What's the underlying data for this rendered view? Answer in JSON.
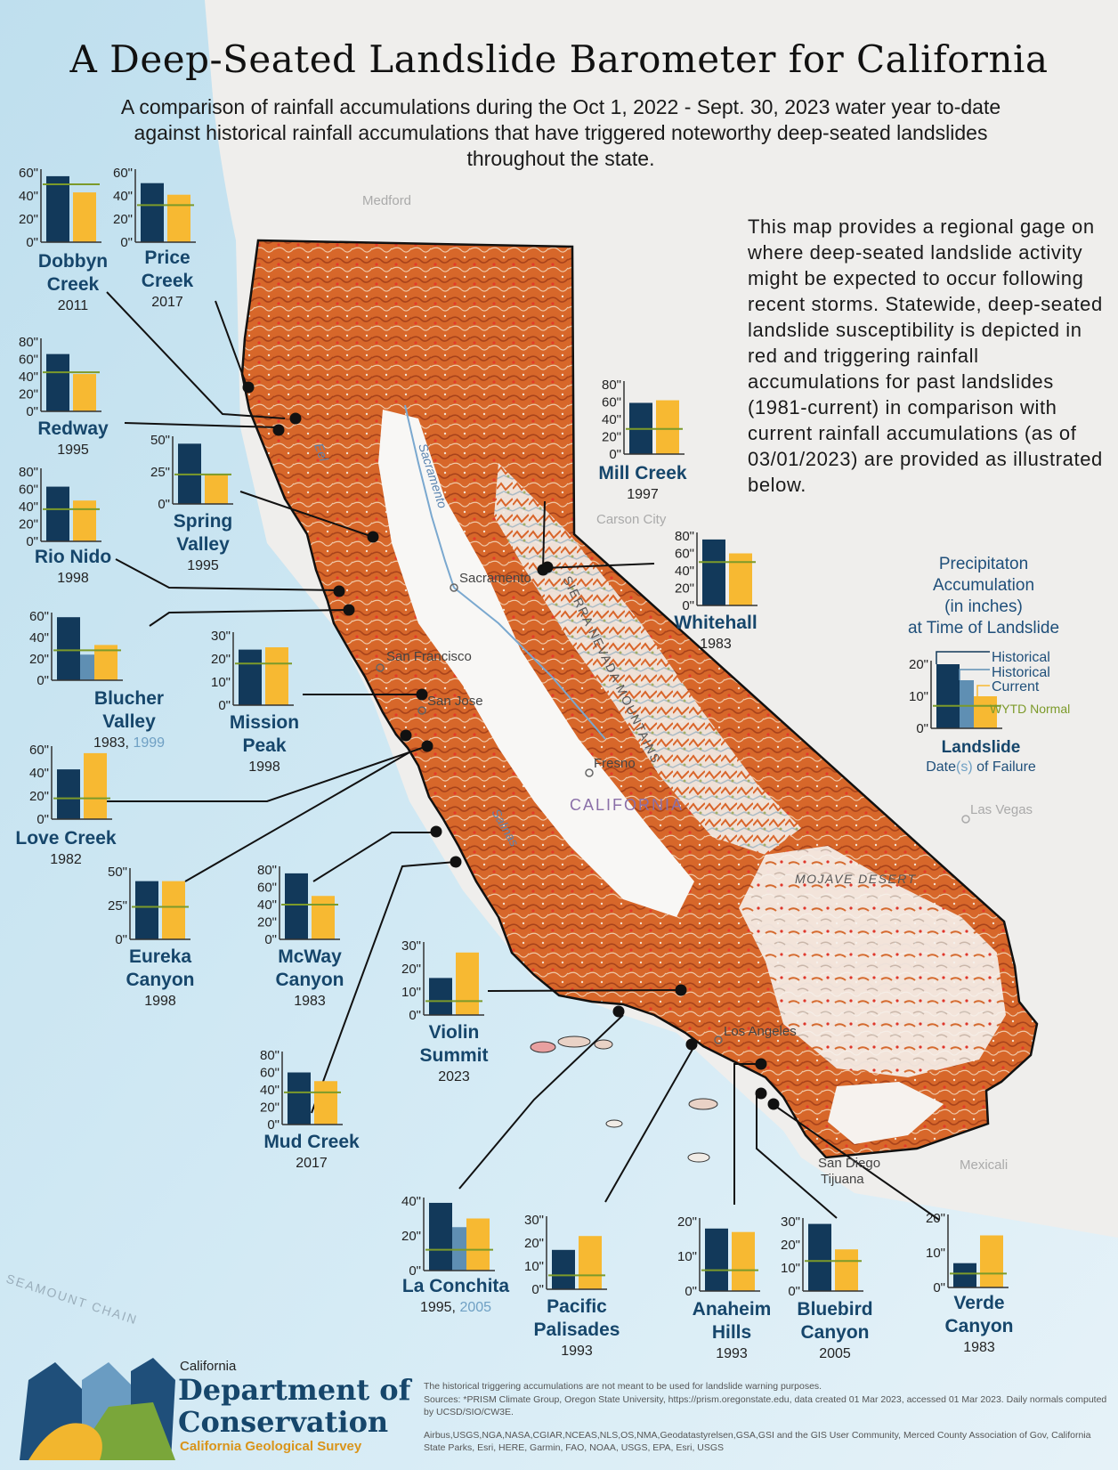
{
  "title": "A Deep-Seated Landslide Barometer for California",
  "subtitle": "A comparison of rainfall accumulations during the Oct 1, 2022 - Sept. 30, 2023 water year to-date against historical rainfall accumulations that have triggered noteworthy deep-seated landslides throughout the state.",
  "description": "This map provides a regional gage on where deep-seated landslide activity might be expected to occur following recent storms. Statewide, deep-seated landslide susceptibility is depicted in red and triggering rainfall accumulations for past landslides (1981-current) in comparison with current rainfall accumulations (as of 03/01/2023) are provided as illustrated below.",
  "colors": {
    "historical": "#12395a",
    "historical_second": "#5f8fb3",
    "current": "#f7b932",
    "normal": "#7c9a2a",
    "second_date": "#6fa0c4",
    "susceptibility": "#d9652a",
    "high_susceptibility": "#e0312a",
    "label": "#16466b"
  },
  "legend": {
    "title": "Precipitaton Accumulation (in inches) at Time of Landslide",
    "title_lines": [
      "Precipitaton",
      "Accumulation",
      "(in inches)",
      "at Time of Landslide"
    ],
    "historical_label": "Historical",
    "current_label": "Current",
    "normal_label": "WYTD Normal",
    "name": "Landslide",
    "date_prefix": "Date",
    "date_paren": "(s)",
    "date_suffix": " of Failure",
    "ticks": [
      "20\"",
      "10\"",
      "0\""
    ],
    "max": 20,
    "historical": 20,
    "historical_second": 15,
    "current": 10,
    "normal": 7
  },
  "place_labels": {
    "state": "CALIFORNIA",
    "cities": [
      "Sacramento",
      "San Francisco",
      "San Jose",
      "Fresno",
      "Los Angeles",
      "San Diego",
      "Tijuana",
      "Carson City",
      "Las Vegas",
      "Medford",
      "Mexicali"
    ],
    "rivers": [
      "Sacramento",
      "Eel",
      "Salinas"
    ],
    "regions": [
      "SIERRA NEVADA MOUNTAINS",
      "MOJAVE DESERT"
    ],
    "other": [
      "SEAMOUNT CHAIN"
    ]
  },
  "landslides": [
    {
      "name_lines": [
        "Dobbyn",
        "Creek"
      ],
      "year": "2011",
      "ticks": [
        "60\"",
        "40\"",
        "20\"",
        "0\""
      ],
      "max": 60,
      "historical": 57,
      "current": 43,
      "normal": 50
    },
    {
      "name_lines": [
        "Price",
        "Creek"
      ],
      "year": "2017",
      "ticks": [
        "60\"",
        "40\"",
        "20\"",
        "0\""
      ],
      "max": 60,
      "historical": 51,
      "current": 41,
      "normal": 32
    },
    {
      "name_lines": [
        "Redway"
      ],
      "year": "1995",
      "ticks": [
        "80\"",
        "60\"",
        "40\"",
        "20\"",
        "0\""
      ],
      "max": 80,
      "historical": 66,
      "current": 43,
      "normal": 45
    },
    {
      "name_lines": [
        "Rio Nido"
      ],
      "year": "1998",
      "ticks": [
        "80\"",
        "60\"",
        "40\"",
        "20\"",
        "0\""
      ],
      "max": 80,
      "historical": 63,
      "current": 47,
      "normal": 37
    },
    {
      "name_lines": [
        "Spring",
        "Valley"
      ],
      "year": "1995",
      "ticks": [
        "50\"",
        "25\"",
        "0\""
      ],
      "max": 50,
      "historical": 47,
      "current": 23,
      "normal": 23
    },
    {
      "name_lines": [
        "Blucher",
        "Valley"
      ],
      "year": "1983",
      "year2": "1999",
      "ticks": [
        "60\"",
        "40\"",
        "20\"",
        "0\""
      ],
      "max": 60,
      "historical": 59,
      "historical_second": 24,
      "current": 33,
      "normal": 28
    },
    {
      "name_lines": [
        "Mission",
        "Peak"
      ],
      "year": "1998",
      "ticks": [
        "30\"",
        "20\"",
        "10\"",
        "0\""
      ],
      "max": 30,
      "historical": 24,
      "current": 25,
      "normal": 18
    },
    {
      "name_lines": [
        "Love Creek"
      ],
      "year": "1982",
      "ticks": [
        "60\"",
        "40\"",
        "20\"",
        "0\""
      ],
      "max": 60,
      "historical": 43,
      "current": 57,
      "normal": 18
    },
    {
      "name_lines": [
        "Eureka",
        "Canyon"
      ],
      "year": "1998",
      "ticks": [
        "50\"",
        "25\"",
        "0\""
      ],
      "max": 50,
      "historical": 43,
      "current": 43,
      "normal": 24
    },
    {
      "name_lines": [
        "McWay",
        "Canyon"
      ],
      "year": "1983",
      "ticks": [
        "80\"",
        "60\"",
        "40\"",
        "20\"",
        "0\""
      ],
      "max": 80,
      "historical": 76,
      "current": 50,
      "normal": 40
    },
    {
      "name_lines": [
        "Mill Creek"
      ],
      "year": "1997",
      "ticks": [
        "80\"",
        "60\"",
        "40\"",
        "20\"",
        "0\""
      ],
      "max": 80,
      "historical": 59,
      "current": 62,
      "normal": 29
    },
    {
      "name_lines": [
        "Whitehall"
      ],
      "year": "1983",
      "ticks": [
        "80\"",
        "60\"",
        "40\"",
        "20\"",
        "0\""
      ],
      "max": 80,
      "historical": 76,
      "current": 60,
      "normal": 50
    },
    {
      "name_lines": [
        "Violin",
        "Summit"
      ],
      "year": "2023",
      "ticks": [
        "30\"",
        "20\"",
        "10\"",
        "0\""
      ],
      "max": 30,
      "historical": 16,
      "current": 27,
      "normal": 6
    },
    {
      "name_lines": [
        "Mud Creek"
      ],
      "year": "2017",
      "ticks": [
        "80\"",
        "60\"",
        "40\"",
        "20\"",
        "0\""
      ],
      "max": 80,
      "historical": 60,
      "current": 50,
      "normal": 37
    },
    {
      "name_lines": [
        "La Conchita"
      ],
      "year": "1995",
      "year2": "2005",
      "ticks": [
        "40\"",
        "20\"",
        "0\""
      ],
      "max": 40,
      "historical": 39,
      "historical_second": 25,
      "current": 30,
      "normal": 12
    },
    {
      "name_lines": [
        "Pacific",
        "Palisades"
      ],
      "year": "1993",
      "ticks": [
        "30\"",
        "20\"",
        "10\"",
        "0\""
      ],
      "max": 30,
      "historical": 17,
      "current": 23,
      "normal": 6
    },
    {
      "name_lines": [
        "Anaheim",
        "Hills"
      ],
      "year": "1993",
      "ticks": [
        "20\"",
        "10\"",
        "0\""
      ],
      "max": 20,
      "historical": 18,
      "current": 17,
      "normal": 6
    },
    {
      "name_lines": [
        "Bluebird",
        "Canyon"
      ],
      "year": "2005",
      "ticks": [
        "30\"",
        "20\"",
        "10\"",
        "0\""
      ],
      "max": 30,
      "historical": 29,
      "current": 18,
      "normal": 13
    },
    {
      "name_lines": [
        "Verde",
        "Canyon"
      ],
      "year": "1983",
      "ticks": [
        "20\"",
        "10\"",
        "0\""
      ],
      "max": 20,
      "historical": 7,
      "current": 15,
      "normal": 4
    }
  ],
  "footer": {
    "disclaimer": "The historical triggering accumulations are not meant to be used for landslide warning purposes.",
    "sources": "Sources:  *PRISM Climate Group, Oregon State University, https://prism.oregonstate.edu, data created 01 Mar 2023, accessed 01 Mar 2023. Daily normals computed by UCSD/SIO/CW3E.",
    "credits": "Airbus,USGS,NGA,NASA,CGIAR,NCEAS,NLS,OS,NMA,Geodatastyrelsen,GSA,GSI and the GIS User Community, Merced County Association of Gov, California State Parks, Esri, HERE, Garmin, FAO, NOAA, USGS, EPA, Esri, USGS"
  },
  "logo": {
    "line1": "California",
    "line2": "Department of",
    "line3": "Conservation",
    "line4": "California Geological Survey"
  }
}
